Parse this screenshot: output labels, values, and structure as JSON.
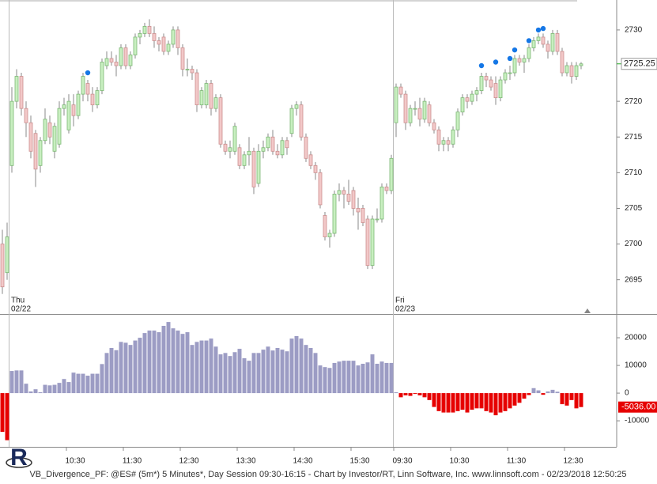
{
  "chart_data": [
    {
      "type": "candlestick",
      "open": [
        2700,
        2696,
        2711,
        2720,
        2723.5,
        2719,
        2717,
        2715.5,
        2711,
        2714.5,
        2717,
        2713,
        2714,
        2719,
        2716,
        2719.5,
        2718,
        2721,
        2722.5,
        2721,
        2719.5,
        2721.5,
        2725,
        2726,
        2725.5,
        2725,
        2727.5,
        2725,
        2726.5,
        2729,
        2729.5,
        2730.5,
        2729.5,
        2728.5,
        2729,
        2727,
        2728,
        2730,
        2727.5,
        2724.5,
        2724.5,
        2724,
        2719.5,
        2719.5,
        2722.5,
        2719,
        2720.5,
        2714,
        2713,
        2713,
        2713.5,
        2711,
        2712.5,
        2713,
        2708.5,
        2713,
        2713.5,
        2715,
        2713,
        2712.5,
        2714.5,
        2715.5,
        2719,
        2719.5,
        2715,
        2712.5,
        2711,
        2710,
        2704,
        2701,
        2701.5,
        2707,
        2707.5,
        2707,
        2707.5,
        2705,
        2705,
        2703.5,
        2697,
        2703.5,
        2703.5,
        2708,
        2707.5,
        2717,
        2722,
        2721,
        2717,
        2719,
        2719,
        2717.5,
        2719.5,
        2717,
        2716,
        2714,
        2714.5,
        2714,
        2716,
        2718.5,
        2720.5,
        2720,
        2721,
        2721.5,
        2723.5,
        2723,
        2722.5,
        2720.5,
        2723,
        2724,
        2724,
        2726,
        2725.5,
        2726,
        2727.5,
        2728.5,
        2729,
        2728,
        2727,
        2729.5,
        2727,
        2724,
        2725,
        2723.5,
        2725
      ],
      "high": [
        2702,
        2703,
        2722,
        2724.5,
        2724,
        2720,
        2718,
        2716,
        2715,
        2719,
        2718,
        2717,
        2720,
        2720.5,
        2721,
        2721,
        2721.5,
        2724,
        2723,
        2722,
        2722,
        2726,
        2727,
        2727,
        2726.5,
        2728,
        2728,
        2727,
        2729.5,
        2730,
        2731,
        2731.5,
        2730.5,
        2729,
        2729.5,
        2728.5,
        2730.5,
        2730.5,
        2728,
        2726,
        2725,
        2724.5,
        2722,
        2723,
        2723,
        2721,
        2721,
        2714.5,
        2714.5,
        2717,
        2714,
        2713,
        2715,
        2713.5,
        2714,
        2714.5,
        2715.5,
        2716,
        2714,
        2715,
        2715,
        2719.5,
        2720,
        2720,
        2715.5,
        2713,
        2711.5,
        2710.5,
        2704.5,
        2702,
        2707.5,
        2708.5,
        2708,
        2709,
        2708,
        2706.5,
        2705.5,
        2704,
        2704,
        2705,
        2708.5,
        2708.5,
        2712.5,
        2722.5,
        2722.5,
        2721.5,
        2719.5,
        2720,
        2720.5,
        2720.5,
        2720,
        2717.5,
        2716.5,
        2715,
        2715,
        2716.5,
        2719,
        2721,
        2721,
        2721.5,
        2722,
        2724,
        2724,
        2723.5,
        2723.5,
        2723.5,
        2724.5,
        2725,
        2726.5,
        2726.5,
        2726.5,
        2728,
        2729,
        2729.5,
        2729.5,
        2728.5,
        2730,
        2730,
        2727.5,
        2725.5,
        2725.5,
        2725.5,
        2725.5
      ],
      "low": [
        2693,
        2695,
        2710,
        2719,
        2718,
        2715,
        2712,
        2708,
        2710,
        2714,
        2714,
        2712,
        2713.5,
        2718,
        2715.5,
        2716.5,
        2717.5,
        2720,
        2720,
        2718.5,
        2719,
        2721,
        2724.5,
        2725,
        2723.5,
        2724.5,
        2724.5,
        2724.5,
        2726,
        2728,
        2729,
        2729,
        2727.5,
        2727,
        2726.5,
        2726.5,
        2727.5,
        2726.5,
        2723.5,
        2723.5,
        2723,
        2718.5,
        2719,
        2719,
        2718,
        2718.5,
        2713.5,
        2712.5,
        2712,
        2712.5,
        2710.5,
        2710.5,
        2711,
        2707,
        2708,
        2712,
        2713,
        2712.5,
        2712,
        2712,
        2712.5,
        2715,
        2718,
        2714.5,
        2711.5,
        2710.5,
        2709,
        2705,
        2700.5,
        2699.5,
        2701,
        2706,
        2705,
        2705.5,
        2704,
        2702,
        2702.5,
        2696.5,
        2696.5,
        2703,
        2703,
        2707,
        2707,
        2715,
        2720.5,
        2716,
        2716.5,
        2718,
        2716.5,
        2717,
        2716.5,
        2715.5,
        2713,
        2713,
        2713,
        2713.5,
        2715,
        2718,
        2719,
        2719.5,
        2720,
        2721,
        2722,
        2721.5,
        2719.5,
        2720,
        2722.5,
        2723,
        2723.5,
        2725,
        2724,
        2725.5,
        2727,
        2728,
        2727.5,
        2726,
        2726.5,
        2726.5,
        2723.5,
        2723.5,
        2722.5,
        2723,
        2724.5
      ],
      "close": [
        2694,
        2701,
        2720,
        2723.5,
        2719,
        2717,
        2713,
        2710.5,
        2714.5,
        2717.5,
        2715,
        2716.5,
        2719,
        2719.5,
        2720,
        2718,
        2721,
        2723.5,
        2721,
        2719.5,
        2721.5,
        2725.5,
        2726,
        2725.5,
        2725,
        2727.5,
        2725,
        2726.5,
        2729,
        2729.5,
        2730.5,
        2729.5,
        2728.5,
        2728,
        2727,
        2728,
        2730,
        2727.5,
        2724.5,
        2724.5,
        2724,
        2719.5,
        2721.5,
        2722.5,
        2719,
        2720.5,
        2714,
        2713,
        2713.5,
        2716.5,
        2711,
        2712.5,
        2713,
        2708,
        2713,
        2713.5,
        2715,
        2713,
        2712.5,
        2714.5,
        2713.5,
        2719,
        2719.5,
        2715,
        2712,
        2711,
        2710,
        2705.5,
        2701,
        2701.5,
        2707,
        2707.5,
        2707,
        2706,
        2705,
        2704.5,
        2703,
        2697,
        2703.5,
        2703.5,
        2708,
        2707.5,
        2712,
        2722,
        2721,
        2717,
        2719,
        2719,
        2717.5,
        2720,
        2717,
        2716,
        2714,
        2714.5,
        2714,
        2716,
        2718.5,
        2720.5,
        2720,
        2721,
        2721.5,
        2723.5,
        2723,
        2722,
        2720.5,
        2723,
        2724,
        2724,
        2726,
        2725.5,
        2726,
        2727.5,
        2728.5,
        2729,
        2728,
        2727,
        2729.5,
        2727,
        2724,
        2725,
        2723.5,
        2725,
        2725.25
      ],
      "up_color": "#c8efc0",
      "down_color": "#f2c8c8",
      "signals": {
        "color": "#1577e6",
        "values": [
          null,
          null,
          null,
          null,
          null,
          null,
          null,
          null,
          null,
          null,
          null,
          null,
          null,
          null,
          null,
          null,
          null,
          null,
          2724,
          null,
          null,
          null,
          null,
          null,
          null,
          null,
          null,
          null,
          null,
          null,
          null,
          null,
          null,
          null,
          null,
          null,
          null,
          null,
          null,
          null,
          null,
          null,
          null,
          null,
          null,
          null,
          null,
          null,
          null,
          null,
          null,
          null,
          null,
          null,
          null,
          null,
          null,
          null,
          null,
          null,
          null,
          null,
          null,
          null,
          null,
          null,
          null,
          null,
          null,
          null,
          null,
          null,
          null,
          null,
          null,
          null,
          null,
          null,
          null,
          null,
          null,
          null,
          null,
          null,
          null,
          null,
          null,
          null,
          null,
          null,
          null,
          null,
          null,
          null,
          null,
          null,
          null,
          null,
          null,
          null,
          null,
          2725,
          null,
          null,
          2725.5,
          null,
          null,
          2726,
          2727.2,
          null,
          null,
          2728.5,
          null,
          2730,
          2730.2,
          null,
          null,
          null,
          null,
          null,
          null,
          null,
          null
        ]
      },
      "ylim": [
        2690.2,
        2734.2
      ],
      "yticks": [
        2695,
        2700,
        2705,
        2710,
        2715,
        2720,
        2730
      ],
      "last_value": 2725.25,
      "day_labels": [
        {
          "day": "Thu",
          "date": "02/22"
        },
        {
          "day": "Fri",
          "date": "02/23"
        }
      ]
    },
    {
      "type": "bar",
      "categories": [
        null,
        null,
        null,
        null,
        null,
        null,
        null,
        null,
        null,
        null,
        null,
        null,
        null,
        null,
        "10:30",
        null,
        null,
        null,
        null,
        null,
        null,
        null,
        null,
        null,
        null,
        null,
        "11:30",
        null,
        null,
        null,
        null,
        null,
        null,
        null,
        null,
        null,
        null,
        null,
        "12:30",
        null,
        null,
        null,
        null,
        null,
        null,
        null,
        null,
        null,
        null,
        null,
        "13:30",
        null,
        null,
        null,
        null,
        null,
        null,
        null,
        null,
        null,
        null,
        null,
        "14:30",
        null,
        null,
        null,
        null,
        null,
        null,
        null,
        null,
        null,
        null,
        null,
        "15:30",
        null,
        null,
        null,
        null,
        null,
        null,
        null,
        null,
        "09:30",
        null,
        null,
        null,
        null,
        null,
        null,
        null,
        null,
        null,
        null,
        null,
        "10:30",
        null,
        null,
        null,
        null,
        null,
        null,
        null,
        null,
        null,
        null,
        null,
        "11:30",
        null,
        null,
        null,
        null,
        null,
        null,
        null,
        null,
        null,
        null,
        null,
        "12:30",
        null,
        null,
        null
      ],
      "values": [
        -14000,
        -17000,
        8000,
        8200,
        8200,
        3400,
        600,
        1400,
        300,
        3000,
        2800,
        3000,
        3700,
        5100,
        4000,
        7400,
        7000,
        7000,
        6300,
        7000,
        7000,
        10500,
        14500,
        16300,
        15500,
        18500,
        18200,
        17400,
        19000,
        20000,
        21700,
        22600,
        22600,
        22000,
        24300,
        25700,
        23400,
        22600,
        21400,
        22000,
        17400,
        18500,
        19000,
        19000,
        19700,
        16800,
        14000,
        14500,
        13400,
        14800,
        16000,
        12600,
        11700,
        14500,
        14500,
        15700,
        16800,
        15400,
        16300,
        15700,
        15100,
        19700,
        20600,
        19700,
        17400,
        16300,
        14500,
        10000,
        9400,
        9100,
        10900,
        11400,
        11700,
        11700,
        11700,
        10000,
        10600,
        11100,
        14000,
        10600,
        11400,
        10900,
        10900,
        300,
        -1500,
        -800,
        -1000,
        -300,
        -800,
        -1500,
        -2500,
        -5000,
        -6500,
        -7000,
        -7000,
        -7000,
        -6500,
        -6000,
        -7000,
        -6000,
        -5500,
        -5500,
        -6500,
        -7000,
        -8000,
        -7000,
        -6500,
        -5500,
        -4500,
        -3500,
        -2000,
        -700,
        1800,
        1000,
        -600,
        600,
        1200,
        500,
        -4000,
        -4500,
        -2500,
        -5500,
        -5036
      ],
      "color": "#9c9cc4",
      "negative_color": "#e60000",
      "ylim": [
        -19400,
        28300
      ],
      "yticks": [
        20000,
        10000,
        0,
        -10000
      ],
      "last_value": {
        "value": -5036,
        "label": "-5036.00"
      }
    }
  ],
  "footer": "VB_Divergence_PF: @ES# (5m*) 5 Minutes*, Day Session 09:30-16:15 - Chart by Investor/RT, Linn Software, Inc. www.linnsoft.com - 02/23/2018 12:50:25"
}
